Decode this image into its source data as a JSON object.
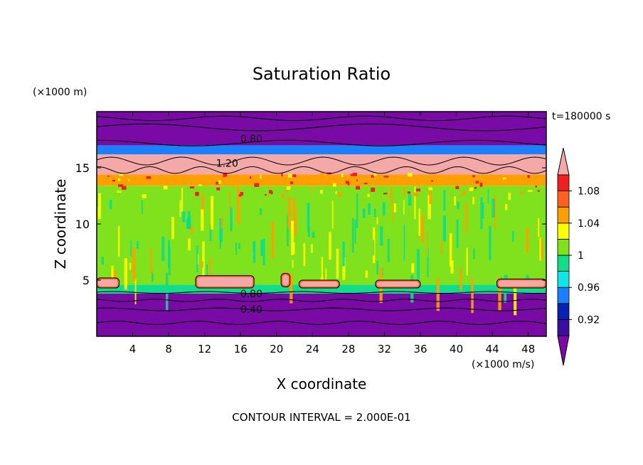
{
  "chart_data": {
    "type": "heatmap",
    "title": "Saturation Ratio",
    "xlabel": "X coordinate",
    "ylabel": "Z coordinate",
    "x_unit": "(×1000 m/s)",
    "y_unit": "(×1000 m)",
    "time_label": "t=180000 s",
    "footer": "CONTOUR INTERVAL = 2.000E-01",
    "xlim": [
      0,
      50
    ],
    "ylim": [
      0,
      20
    ],
    "x_ticks": [
      4,
      8,
      12,
      16,
      20,
      24,
      28,
      32,
      36,
      40,
      44,
      48
    ],
    "y_ticks": [
      5,
      10,
      15
    ],
    "colorbar": {
      "levels": [
        0.9,
        0.92,
        0.94,
        0.96,
        0.98,
        1.0,
        1.02,
        1.04,
        1.06,
        1.08,
        1.1
      ],
      "tick_labels": [
        "0.92",
        "0.96",
        "1",
        "1.04",
        "1.08"
      ],
      "tick_values": [
        0.92,
        0.96,
        1.0,
        1.04,
        1.08
      ],
      "colors": [
        "#3a0f9e",
        "#0a20b0",
        "#1a80ff",
        "#10e6e6",
        "#10dc8a",
        "#80e21c",
        "#ffff00",
        "#ffa000",
        "#ff6020",
        "#f02020"
      ],
      "under_color": "#7a0aa6",
      "over_color": "#f4a8a8"
    },
    "layers": [
      {
        "z": [
          0.0,
          3.8
        ],
        "value": "below 0.90",
        "color": "#7a0aa6"
      },
      {
        "z": [
          3.8,
          4.6
        ],
        "value": "0.98-1.00",
        "color": "#10dc8a"
      },
      {
        "z": [
          4.6,
          13.4
        ],
        "value": "1.00-1.02",
        "color": "#80e21c"
      },
      {
        "z": [
          13.4,
          14.4
        ],
        "value": "1.02-1.10",
        "color": "#ffa000"
      },
      {
        "z": [
          14.4,
          16.2
        ],
        "value": "above 1.10",
        "color": "#f4a8a8"
      },
      {
        "z": [
          16.2,
          17.0
        ],
        "value": "0.90-0.98",
        "color": "#1a80ff"
      },
      {
        "z": [
          17.0,
          20.0
        ],
        "value": "below 0.90",
        "color": "#7a0aa6"
      }
    ],
    "low_level_patches": [
      {
        "x": [
          0,
          2.5
        ],
        "z": [
          4.3,
          5.2
        ]
      },
      {
        "x": [
          11,
          17.5
        ],
        "z": [
          4.3,
          5.4
        ]
      },
      {
        "x": [
          20.5,
          21.5
        ],
        "z": [
          4.4,
          5.6
        ]
      },
      {
        "x": [
          22.5,
          27
        ],
        "z": [
          4.3,
          5.0
        ]
      },
      {
        "x": [
          31,
          36
        ],
        "z": [
          4.3,
          5.0
        ]
      },
      {
        "x": [
          44.5,
          50
        ],
        "z": [
          4.3,
          5.1
        ]
      }
    ],
    "contour_labels": [
      {
        "text": "0.80",
        "x": 17.2,
        "z": 17.6
      },
      {
        "text": "1.20",
        "x": 14.5,
        "z": 15.4
      },
      {
        "text": "0.80",
        "x": 17.2,
        "z": 3.8
      },
      {
        "text": "0.40",
        "x": 17.2,
        "z": 2.4
      }
    ]
  }
}
